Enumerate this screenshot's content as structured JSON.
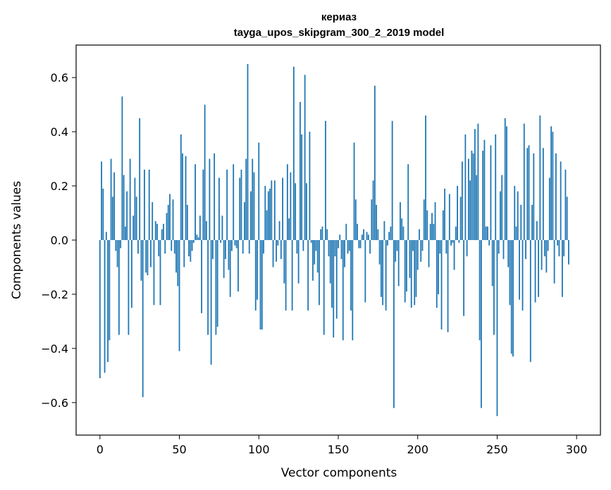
{
  "chart_data": {
    "type": "bar",
    "title_lines": [
      "кериаз",
      "tayga_upos_skipgram_300_2_2019 model"
    ],
    "xlabel": "Vector components",
    "ylabel": "Components values",
    "xlim": [
      -15,
      315
    ],
    "ylim": [
      -0.72,
      0.72
    ],
    "xticks": [
      0,
      50,
      100,
      150,
      200,
      250,
      300
    ],
    "xtick_labels": [
      "0",
      "50",
      "100",
      "150",
      "200",
      "250",
      "300"
    ],
    "yticks": [
      -0.6,
      -0.4,
      -0.2,
      0.0,
      0.2,
      0.4,
      0.6
    ],
    "ytick_labels": [
      "−0.6",
      "−0.4",
      "−0.2",
      "0.0",
      "0.2",
      "0.4",
      "0.6"
    ],
    "grid": false,
    "bar_color": "#1f77b4",
    "values": [
      -0.51,
      0.29,
      0.19,
      -0.49,
      0.03,
      -0.45,
      -0.37,
      0.3,
      0.16,
      0.25,
      -0.04,
      -0.1,
      -0.35,
      -0.03,
      0.53,
      0.24,
      0.05,
      0.18,
      -0.35,
      0.3,
      -0.25,
      0.09,
      0.23,
      0.16,
      -0.05,
      0.45,
      -0.15,
      -0.58,
      0.26,
      -0.12,
      -0.13,
      0.26,
      -0.1,
      0.14,
      -0.24,
      0.07,
      0.06,
      -0.06,
      -0.24,
      0.04,
      0.06,
      -0.05,
      0.1,
      0.13,
      0.17,
      -0.04,
      0.15,
      -0.05,
      -0.12,
      -0.17,
      -0.41,
      0.39,
      0.32,
      -0.1,
      0.31,
      0.13,
      -0.06,
      -0.08,
      -0.04,
      -0.01,
      0.28,
      0.02,
      0.01,
      0.09,
      -0.27,
      0.26,
      0.5,
      0.07,
      -0.35,
      0.3,
      -0.46,
      -0.07,
      0.32,
      -0.35,
      -0.32,
      0.23,
      -0.01,
      0.09,
      -0.14,
      -0.07,
      0.26,
      -0.11,
      -0.21,
      -0.04,
      0.28,
      -0.02,
      -0.03,
      -0.19,
      0.23,
      0.26,
      -0.05,
      0.14,
      0.3,
      0.65,
      -0.05,
      0.18,
      0.3,
      0.25,
      -0.26,
      -0.22,
      0.36,
      -0.33,
      -0.33,
      -0.05,
      0.2,
      0.11,
      0.18,
      0.19,
      0.22,
      -0.1,
      0.22,
      -0.08,
      -0.02,
      0.07,
      -0.07,
      0.23,
      -0.16,
      -0.26,
      0.28,
      0.08,
      0.25,
      -0.26,
      0.64,
      0.21,
      -0.05,
      -0.16,
      0.51,
      0.39,
      -0.04,
      0.61,
      0.21,
      -0.26,
      0.4,
      -0.01,
      -0.15,
      -0.09,
      -0.04,
      -0.12,
      -0.24,
      0.04,
      0.05,
      -0.35,
      0.44,
      0.04,
      -0.06,
      -0.16,
      -0.25,
      -0.36,
      -0.06,
      -0.29,
      -0.03,
      0.02,
      -0.07,
      -0.37,
      -0.1,
      0.06,
      -0.05,
      -0.04,
      -0.26,
      -0.37,
      0.36,
      0.15,
      0.06,
      -0.03,
      -0.03,
      0.02,
      0.04,
      -0.23,
      0.03,
      0.02,
      -0.05,
      0.15,
      0.22,
      0.57,
      0.13,
      0.04,
      -0.09,
      -0.21,
      -0.24,
      0.07,
      -0.26,
      -0.02,
      0.03,
      0.05,
      0.44,
      -0.62,
      -0.08,
      -0.04,
      -0.17,
      0.14,
      0.08,
      0.05,
      -0.23,
      -0.19,
      0.28,
      -0.14,
      -0.25,
      -0.04,
      -0.24,
      -0.21,
      -0.11,
      0.04,
      -0.08,
      -0.04,
      0.15,
      0.46,
      0.11,
      -0.1,
      0.06,
      0.1,
      0.06,
      0.14,
      -0.25,
      -0.2,
      -0.05,
      -0.33,
      0.11,
      0.19,
      -0.05,
      -0.34,
      0.17,
      -0.02,
      -0.01,
      -0.11,
      0.05,
      0.2,
      -0.01,
      0.16,
      0.29,
      -0.28,
      0.39,
      -0.06,
      0.3,
      0.22,
      0.33,
      0.32,
      0.41,
      0.24,
      0.43,
      -0.37,
      -0.62,
      0.33,
      0.37,
      0.05,
      0.05,
      -0.02,
      0.35,
      -0.17,
      -0.35,
      0.39,
      -0.65,
      -0.05,
      0.18,
      0.24,
      -0.07,
      0.45,
      0.42,
      -0.1,
      -0.24,
      -0.42,
      -0.43,
      0.2,
      0.05,
      0.18,
      -0.22,
      0.13,
      -0.26,
      0.43,
      -0.07,
      0.34,
      0.35,
      -0.45,
      0.13,
      0.32,
      -0.23,
      0.07,
      -0.21,
      0.46,
      -0.11,
      0.34,
      -0.06,
      -0.12,
      -0.04,
      0.23,
      0.42,
      0.4,
      -0.16,
      0.32,
      -0.02,
      -0.06,
      0.29,
      -0.21,
      -0.06,
      0.26,
      0.16,
      -0.09
    ]
  }
}
